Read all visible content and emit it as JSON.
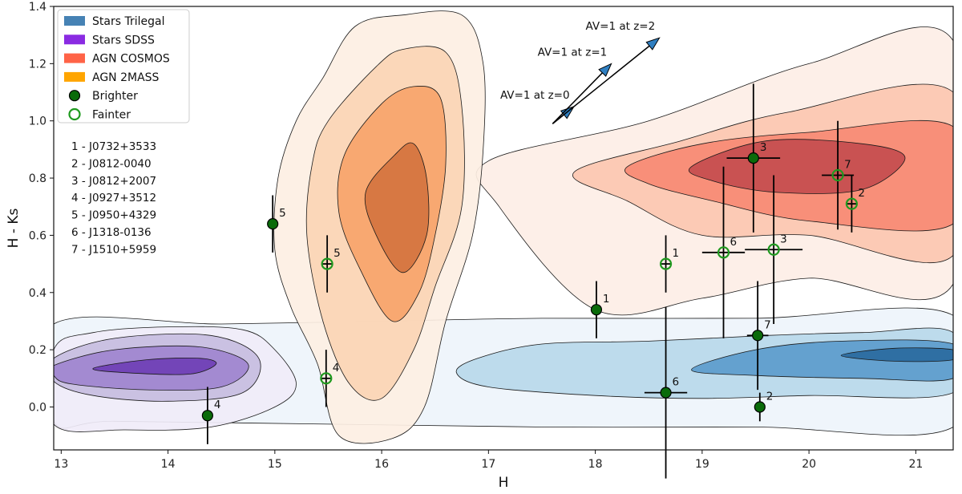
{
  "chart_data": {
    "type": "scatter",
    "xlabel": "H",
    "ylabel": "H - Ks",
    "xlim": [
      12.93,
      21.35
    ],
    "ylim": [
      -0.15,
      1.4
    ],
    "xticks": [
      "13",
      "14",
      "15",
      "16",
      "17",
      "18",
      "19",
      "20",
      "21"
    ],
    "yticks": [
      "0.0",
      "0.2",
      "0.4",
      "0.6",
      "0.8",
      "1.0",
      "1.2",
      "1.4"
    ],
    "grid": false,
    "legend_position": "top-left",
    "legend": [
      {
        "label": "Stars Trilegal",
        "kind": "patch",
        "color": "#4682b4"
      },
      {
        "label": "Stars SDSS",
        "kind": "patch",
        "color": "#8a2be2"
      },
      {
        "label": "AGN COSMOS",
        "kind": "patch",
        "color": "#ff6347"
      },
      {
        "label": "AGN 2MASS",
        "kind": "patch",
        "color": "#ffa500"
      },
      {
        "label": "Brighter",
        "kind": "filled-marker",
        "color": "#006400"
      },
      {
        "label": "Fainter",
        "kind": "open-marker",
        "color": "#228b22"
      }
    ],
    "object_list": [
      "1 - J0732+3533",
      "2 - J0812-0040",
      "3 - J0812+2007",
      "4 - J0927+3512",
      "5 - J0950+4329",
      "6 - J1318-0136",
      "7 - J1510+5959"
    ],
    "arrows": [
      {
        "label": "AV=1 at z=0",
        "from": [
          17.6,
          0.99
        ],
        "to": [
          17.8,
          1.05
        ]
      },
      {
        "label": "AV=1 at z=1",
        "from": [
          17.6,
          0.99
        ],
        "to": [
          18.15,
          1.2
        ]
      },
      {
        "label": "AV=1 at z=2",
        "from": [
          17.6,
          0.99
        ],
        "to": [
          18.6,
          1.29
        ]
      }
    ],
    "series": [
      {
        "name": "Brighter",
        "style": "filled",
        "points": [
          {
            "id": "1",
            "x": 18.01,
            "y": 0.34,
            "xerr": 0.05,
            "yerr": 0.1
          },
          {
            "id": "2",
            "x": 19.54,
            "y": 0.0,
            "xerr": 0.05,
            "yerr": 0.05
          },
          {
            "id": "3",
            "x": 19.48,
            "y": 0.87,
            "xerr": 0.25,
            "yerr": 0.26
          },
          {
            "id": "4",
            "x": 14.37,
            "y": -0.03,
            "xerr": 0.05,
            "yerr": 0.1
          },
          {
            "id": "5",
            "x": 14.98,
            "y": 0.64,
            "xerr": 0.05,
            "yerr": 0.1
          },
          {
            "id": "6",
            "x": 18.66,
            "y": 0.05,
            "xerr": 0.2,
            "yerr": 0.3
          },
          {
            "id": "7",
            "x": 19.52,
            "y": 0.25,
            "xerr": 0.1,
            "yerr": 0.19
          }
        ]
      },
      {
        "name": "Fainter",
        "style": "open",
        "points": [
          {
            "id": "1",
            "x": 18.66,
            "y": 0.5,
            "xerr": 0.05,
            "yerr": 0.1
          },
          {
            "id": "2",
            "x": 20.4,
            "y": 0.71,
            "xerr": 0.05,
            "yerr": 0.1
          },
          {
            "id": "3",
            "x": 19.67,
            "y": 0.55,
            "xerr": 0.27,
            "yerr": 0.26
          },
          {
            "id": "4",
            "x": 15.48,
            "y": 0.1,
            "xerr": 0.05,
            "yerr": 0.1
          },
          {
            "id": "5",
            "x": 15.49,
            "y": 0.5,
            "xerr": 0.05,
            "yerr": 0.1
          },
          {
            "id": "6",
            "x": 19.2,
            "y": 0.54,
            "xerr": 0.2,
            "yerr": 0.3
          },
          {
            "id": "7",
            "x": 20.27,
            "y": 0.81,
            "xerr": 0.15,
            "yerr": 0.19
          }
        ]
      }
    ],
    "density_regions": [
      {
        "name": "Stars Trilegal",
        "colors": [
          "#eef4fb",
          "#b9d8ea",
          "#5c9ccc",
          "#2a6aa0"
        ],
        "levels": [
          [
            [
              12.93,
              0.29
            ],
            [
              14.5,
              0.29
            ],
            [
              16.0,
              0.3
            ],
            [
              17.5,
              0.31
            ],
            [
              19.5,
              0.31
            ],
            [
              21.35,
              0.32
            ],
            [
              21.35,
              -0.07
            ],
            [
              19.5,
              -0.07
            ],
            [
              17.5,
              -0.07
            ],
            [
              15.5,
              -0.06
            ],
            [
              13.5,
              -0.05
            ],
            [
              12.93,
              -0.05
            ]
          ],
          [
            [
              16.9,
              0.17
            ],
            [
              17.5,
              0.22
            ],
            [
              18.5,
              0.23
            ],
            [
              19.6,
              0.25
            ],
            [
              20.5,
              0.26
            ],
            [
              21.35,
              0.26
            ],
            [
              21.35,
              0.05
            ],
            [
              20.0,
              0.04
            ],
            [
              19.0,
              0.03
            ],
            [
              18.0,
              0.04
            ],
            [
              17.0,
              0.07
            ],
            [
              16.7,
              0.12
            ]
          ],
          [
            [
              18.9,
              0.13
            ],
            [
              19.5,
              0.2
            ],
            [
              20.3,
              0.23
            ],
            [
              21.35,
              0.22
            ],
            [
              21.35,
              0.1
            ],
            [
              20.5,
              0.1
            ],
            [
              19.5,
              0.11
            ]
          ],
          [
            [
              20.3,
              0.18
            ],
            [
              20.8,
              0.205
            ],
            [
              21.35,
              0.2
            ],
            [
              21.35,
              0.165
            ],
            [
              20.8,
              0.16
            ]
          ]
        ]
      },
      {
        "name": "Stars SDSS",
        "colors": [
          "#f0ecf8",
          "#c7bde0",
          "#9f86cf",
          "#6f3fb5"
        ],
        "levels": [
          [
            [
              12.93,
              0.2
            ],
            [
              13.3,
              0.26
            ],
            [
              14.0,
              0.28
            ],
            [
              14.7,
              0.27
            ],
            [
              15.0,
              0.2
            ],
            [
              15.2,
              0.08
            ],
            [
              15.0,
              0.0
            ],
            [
              14.4,
              -0.07
            ],
            [
              13.6,
              -0.08
            ],
            [
              12.93,
              -0.06
            ]
          ],
          [
            [
              12.93,
              0.17
            ],
            [
              13.5,
              0.24
            ],
            [
              14.4,
              0.25
            ],
            [
              14.85,
              0.17
            ],
            [
              14.7,
              0.05
            ],
            [
              14.0,
              0.02
            ],
            [
              13.3,
              0.04
            ],
            [
              12.93,
              0.09
            ]
          ],
          [
            [
              12.93,
              0.145
            ],
            [
              13.5,
              0.2
            ],
            [
              14.3,
              0.21
            ],
            [
              14.75,
              0.15
            ],
            [
              14.5,
              0.07
            ],
            [
              13.8,
              0.06
            ],
            [
              13.1,
              0.08
            ],
            [
              12.93,
              0.11
            ]
          ],
          [
            [
              13.3,
              0.135
            ],
            [
              13.8,
              0.165
            ],
            [
              14.3,
              0.17
            ],
            [
              14.45,
              0.15
            ],
            [
              14.2,
              0.115
            ],
            [
              13.6,
              0.12
            ]
          ]
        ]
      },
      {
        "name": "AGN COSMOS",
        "colors": [
          "#fdeee6",
          "#fcc7b0",
          "#f78a74",
          "#c44d4f"
        ],
        "levels": [
          [
            [
              17.0,
              0.86
            ],
            [
              18.5,
              1.0
            ],
            [
              20.0,
              1.2
            ],
            [
              21.35,
              1.28
            ],
            [
              21.35,
              0.43
            ],
            [
              20.0,
              0.45
            ],
            [
              19.0,
              0.38
            ],
            [
              18.0,
              0.34
            ],
            [
              17.1,
              0.7
            ]
          ],
          [
            [
              17.8,
              0.82
            ],
            [
              18.8,
              0.93
            ],
            [
              19.8,
              1.03
            ],
            [
              21.35,
              1.1
            ],
            [
              21.35,
              0.53
            ],
            [
              20.0,
              0.6
            ],
            [
              19.0,
              0.6
            ],
            [
              18.3,
              0.72
            ]
          ],
          [
            [
              18.3,
              0.84
            ],
            [
              19.0,
              0.92
            ],
            [
              20.0,
              0.96
            ],
            [
              21.35,
              0.98
            ],
            [
              21.35,
              0.64
            ],
            [
              20.0,
              0.65
            ],
            [
              19.1,
              0.72
            ],
            [
              18.5,
              0.78
            ]
          ],
          [
            [
              18.9,
              0.84
            ],
            [
              19.6,
              0.93
            ],
            [
              20.5,
              0.92
            ],
            [
              20.9,
              0.87
            ],
            [
              20.5,
              0.76
            ],
            [
              19.7,
              0.75
            ],
            [
              19.1,
              0.79
            ]
          ]
        ]
      },
      {
        "name": "AGN 2MASS",
        "colors": [
          "#fdefe3",
          "#fbd5b5",
          "#f7a46a",
          "#d4743f"
        ],
        "levels": [
          [
            [
              15.75,
              1.33
            ],
            [
              16.2,
              1.37
            ],
            [
              16.75,
              1.37
            ],
            [
              16.95,
              1.2
            ],
            [
              16.95,
              0.9
            ],
            [
              16.85,
              0.6
            ],
            [
              16.6,
              0.3
            ],
            [
              16.4,
              0.0
            ],
            [
              16.1,
              -0.11
            ],
            [
              15.6,
              -0.1
            ],
            [
              15.4,
              0.15
            ],
            [
              15.15,
              0.35
            ],
            [
              15.0,
              0.55
            ],
            [
              15.03,
              0.8
            ],
            [
              15.2,
              1.0
            ],
            [
              15.45,
              1.15
            ]
          ],
          [
            [
              15.95,
              1.19
            ],
            [
              16.2,
              1.25
            ],
            [
              16.6,
              1.24
            ],
            [
              16.75,
              1.05
            ],
            [
              16.75,
              0.7
            ],
            [
              16.5,
              0.42
            ],
            [
              16.3,
              0.2
            ],
            [
              16.0,
              0.03
            ],
            [
              15.7,
              0.08
            ],
            [
              15.45,
              0.3
            ],
            [
              15.3,
              0.6
            ],
            [
              15.35,
              0.85
            ],
            [
              15.5,
              1.0
            ]
          ],
          [
            [
              16.0,
              1.06
            ],
            [
              16.3,
              1.12
            ],
            [
              16.55,
              1.08
            ],
            [
              16.6,
              0.85
            ],
            [
              16.5,
              0.6
            ],
            [
              16.35,
              0.4
            ],
            [
              16.1,
              0.3
            ],
            [
              15.8,
              0.48
            ],
            [
              15.6,
              0.68
            ],
            [
              15.65,
              0.88
            ]
          ],
          [
            [
              16.12,
              0.88
            ],
            [
              16.3,
              0.92
            ],
            [
              16.42,
              0.8
            ],
            [
              16.42,
              0.6
            ],
            [
              16.2,
              0.47
            ],
            [
              15.95,
              0.6
            ],
            [
              15.85,
              0.75
            ]
          ]
        ]
      }
    ]
  }
}
